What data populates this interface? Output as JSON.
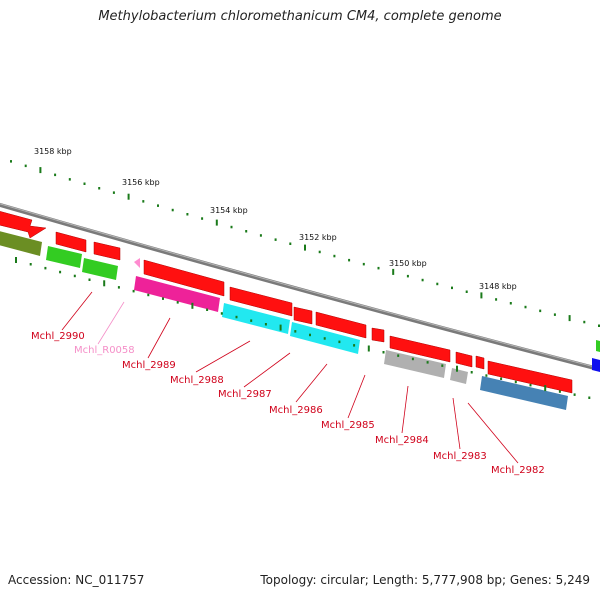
{
  "title": "Methylobacterium chloromethanicum CM4, complete genome",
  "footer": {
    "accession": "Accession: NC_011757",
    "summary": "Topology: circular; Length: 5,777,908 bp; Genes: 5,249"
  },
  "scale": {
    "tick_labels": [
      "3158 kbp",
      "3156 kbp",
      "3154 kbp",
      "3152 kbp",
      "3150 kbp",
      "3148 kbp"
    ]
  },
  "genes": [
    {
      "label": "Mchl_2990",
      "color": "#d0021b"
    },
    {
      "label": "Mchl_R0058",
      "color": "#f58fc8"
    },
    {
      "label": "Mchl_2989",
      "color": "#d0021b"
    },
    {
      "label": "Mchl_2988",
      "color": "#d0021b"
    },
    {
      "label": "Mchl_2987",
      "color": "#d0021b"
    },
    {
      "label": "Mchl_2986",
      "color": "#d0021b"
    },
    {
      "label": "Mchl_2985",
      "color": "#d0021b"
    },
    {
      "label": "Mchl_2984",
      "color": "#d0021b"
    },
    {
      "label": "Mchl_2983",
      "color": "#d0021b"
    },
    {
      "label": "Mchl_2982",
      "color": "#d0021b"
    }
  ],
  "colors": {
    "backbone": "#808080",
    "gene_arrow": "#ff1010",
    "rna": "#ff8cd0",
    "cog_magenta": "#ee2299",
    "cog_cyan": "#22e8f0",
    "cog_green": "#33cc22",
    "cog_olive": "#6b8e23",
    "cog_grey": "#b0b0b0",
    "cog_steelblue": "#4682b4",
    "cog_blue": "#1010ee",
    "tick": "#1a7a1a"
  }
}
